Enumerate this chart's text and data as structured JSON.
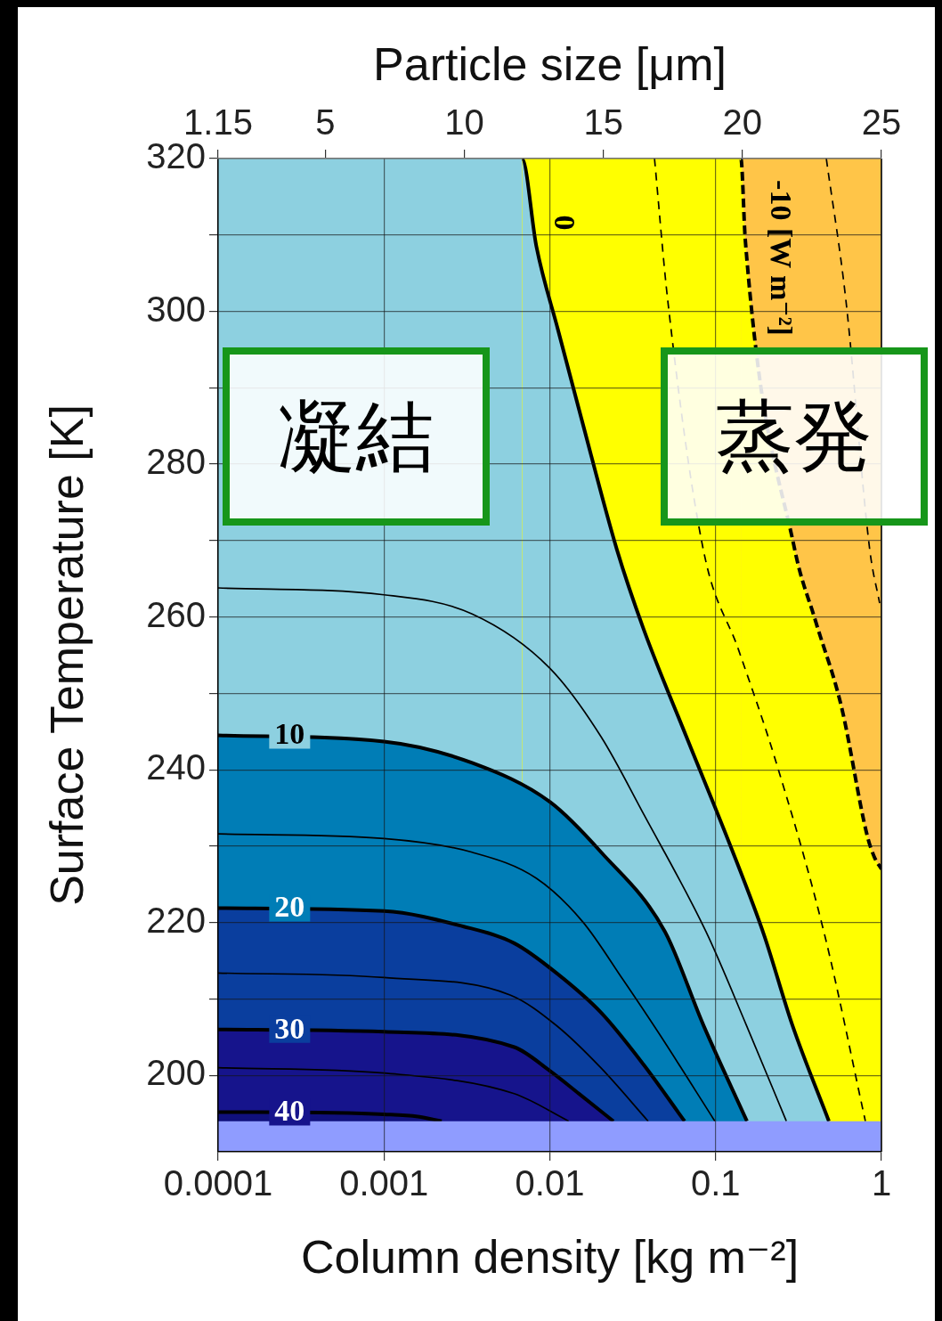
{
  "chart_data": {
    "type": "area",
    "xlabel": "Column density [kg m⁻²]",
    "ylabel": "Surface Temperature [K]",
    "x2label": "Particle size [μm]",
    "log": "x",
    "xlim": [
      0.0001,
      1
    ],
    "xticks": [
      0.0001,
      0.001,
      0.01,
      0.1,
      1
    ],
    "x2lim": [
      1.15,
      25
    ],
    "x2ticks": [
      1.15,
      5,
      10,
      15,
      20,
      25
    ],
    "ylim": [
      190,
      320
    ],
    "yticks": [
      200,
      {
        "value": 210,
        "label": null
      },
      220,
      {
        "value": 230,
        "label": null
      },
      240,
      {
        "value": 250,
        "label": null
      },
      260,
      {
        "value": 270,
        "label": null
      },
      280,
      {
        "value": 290,
        "label": null
      },
      300,
      {
        "value": 310,
        "label": null
      },
      320
    ],
    "grid": true,
    "marker": "none",
    "bands": [
      {
        "axis": "y",
        "from": 190,
        "to": 194,
        "color": "#8f9cff"
      }
    ],
    "series": [
      {
        "color": "#ffc548",
        "x": [
          0.0001,
          1
        ],
        "values": [
          320,
          320
        ]
      },
      {
        "type": "line",
        "color": "#000000",
        "line_style": "dashed",
        "x": [
          0.465,
          0.61,
          0.85,
          0.975
        ],
        "values": [
          320,
          301.5,
          268.8,
          261.8
        ]
      },
      {
        "color": "#ffff00",
        "line_style": "dashed",
        "x": [
          0.0001,
          0.142,
          0.151,
          0.3,
          0.4,
          0.573,
          0.82,
          0.905,
          1
        ],
        "values": [
          320,
          320,
          309.3,
          268.8,
          259.5,
          248.3,
          231.4,
          228.6,
          227
        ]
      },
      {
        "type": "line",
        "color": "#000000",
        "line_style": "dashed",
        "x": [
          0.0428,
          0.0514,
          0.0843,
          0.138,
          0.227,
          0.453,
          0.8
        ],
        "values": [
          320,
          301.5,
          268.8,
          255.6,
          241.6,
          218.5,
          194
        ]
      },
      {
        "color": "#8dd0e0",
        "x": [
          0.0001,
          0.0068,
          0.0083,
          0.0112,
          0.0155,
          0.0254,
          0.0368,
          0.0667,
          0.122,
          0.195,
          0.29,
          0.482
        ],
        "values": [
          320,
          320,
          308.5,
          297.6,
          286,
          268.8,
          258.4,
          244.3,
          230.2,
          218.5,
          206.6,
          194
        ]
      },
      {
        "type": "line",
        "color": "#000000",
        "x": [
          0.0001,
          0.001,
          0.0034,
          0.01,
          0.0204,
          0.0368,
          0.0875,
          0.153,
          0.267
        ],
        "values": [
          263.8,
          262.9,
          260.4,
          253.3,
          244.3,
          234.2,
          218.8,
          206.6,
          194
        ]
      },
      {
        "color": "#007db6",
        "x": [
          0.0001,
          0.001,
          0.0034,
          0.01,
          0.0204,
          0.0495,
          0.0843,
          0.1545
        ],
        "values": [
          244.5,
          243.7,
          240.9,
          235.8,
          229.2,
          218.8,
          206.6,
          194
        ]
      },
      {
        "type": "line",
        "color": "#000000",
        "x": [
          0.0001,
          0.001,
          0.0034,
          0.0083,
          0.0158,
          0.0277,
          0.0455,
          0.099
        ],
        "values": [
          231.6,
          231,
          229.2,
          225.8,
          220.1,
          212.5,
          205.5,
          194
        ]
      },
      {
        "color": "#0a3e9e",
        "x": [
          0.0001,
          0.001,
          0.003,
          0.0061,
          0.0111,
          0.0204,
          0.0368,
          0.065
        ],
        "values": [
          221.9,
          221.5,
          219.5,
          217.3,
          213.3,
          208.2,
          201.4,
          194
        ]
      },
      {
        "type": "line",
        "color": "#000000",
        "x": [
          0.0001,
          0.001,
          0.0058,
          0.011,
          0.0203,
          0.0392
        ],
        "values": [
          213.4,
          212.8,
          210.5,
          206.5,
          201,
          194
        ]
      },
      {
        "color": "#16148c",
        "x": [
          0.0001,
          0.001,
          0.0061,
          0.01,
          0.015,
          0.0242
        ],
        "values": [
          206,
          205.7,
          203.7,
          200.6,
          197.6,
          194
        ]
      },
      {
        "type": "line",
        "color": "#000000",
        "x": [
          0.0001,
          0.001,
          0.0061,
          0.013
        ],
        "values": [
          201,
          200.3,
          197.6,
          194
        ]
      },
      {
        "color": "#10107c",
        "x": [
          0.0001,
          0.0005,
          0.001,
          0.0016,
          0.00223
        ],
        "values": [
          195.2,
          195.1,
          194.9,
          194.6,
          194
        ]
      }
    ],
    "annotations": [
      "凝結",
      "蒸発",
      {
        "text": "0",
        "x": 0.0079,
        "y": 311.6
      },
      {
        "text": "10",
        "x": 0.00027,
        "y": 244.5
      },
      {
        "text": "20",
        "x": 0.00027,
        "y": 221.9
      },
      {
        "text": "30",
        "x": 0.00027,
        "y": 206
      },
      {
        "text": "40",
        "x": 0.00027,
        "y": 195.2
      },
      {
        "text": "-10 [W m⁻²]",
        "x": 0.16,
        "y": 307
      }
    ]
  }
}
